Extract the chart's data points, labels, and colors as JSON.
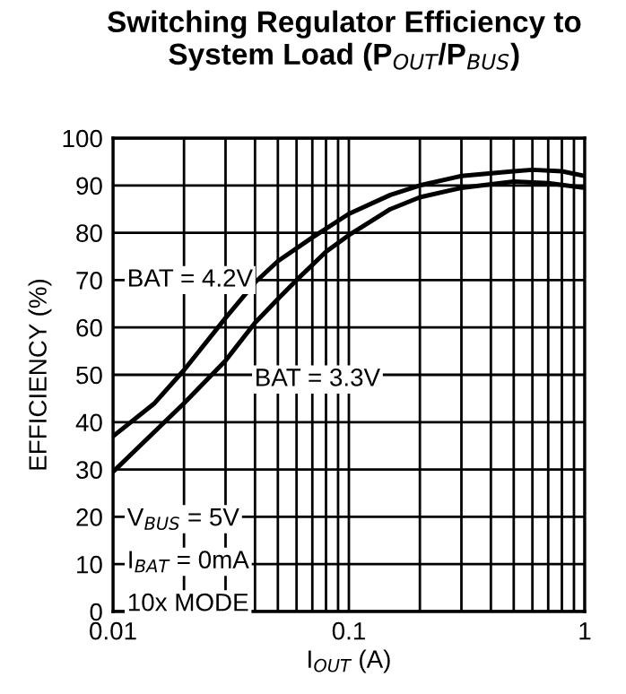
{
  "chart_data": {
    "type": "line",
    "title": "Switching Regulator Efficiency to\nSystem Load (P$_{OUT}$/P$_{BUS}$)",
    "xlabel": "I$_{OUT}$ (A)",
    "ylabel": "EFFICIENCY (%)",
    "log": "x",
    "grid": true,
    "legend": false,
    "marker": "none",
    "line_style": "solid",
    "series": [
      {
        "name": "BAT = 4.2V",
        "color": "#000000",
        "x": [
          0.01,
          0.015,
          0.02,
          0.03,
          0.04,
          0.05,
          0.07,
          0.1,
          0.15,
          0.2,
          0.3,
          0.5,
          0.6,
          0.8,
          1
        ],
        "values": [
          37,
          44,
          51,
          62,
          69.5,
          74,
          79,
          84,
          88,
          90,
          92,
          93,
          93.3,
          93,
          92
        ]
      },
      {
        "name": "BAT = 3.3V",
        "color": "#000000",
        "x": [
          0.01,
          0.02,
          0.03,
          0.04,
          0.05,
          0.06,
          0.08,
          0.1,
          0.15,
          0.2,
          0.3,
          0.5,
          0.7,
          1
        ],
        "values": [
          29.5,
          44,
          53,
          61,
          66,
          70,
          76,
          79.5,
          85,
          87.5,
          89.5,
          90.8,
          90.5,
          89.5
        ]
      }
    ],
    "annotations": [
      "V$_{BUS}$ = 5V",
      "I$_{BAT}$ = 0mA",
      "10x MODE"
    ],
    "xlim": [
      0.01,
      1
    ],
    "ylim": [
      0,
      100
    ],
    "xticks": [
      0.01,
      {
        "value": 0.02,
        "label": null
      },
      {
        "value": 0.03,
        "label": null
      },
      {
        "value": 0.04,
        "label": null
      },
      {
        "value": 0.05,
        "label": null
      },
      {
        "value": 0.06,
        "label": null
      },
      {
        "value": 0.07,
        "label": null
      },
      {
        "value": 0.08,
        "label": null
      },
      {
        "value": 0.09,
        "label": null
      },
      0.1,
      {
        "value": 0.2,
        "label": null
      },
      {
        "value": 0.3,
        "label": null
      },
      {
        "value": 0.4,
        "label": null
      },
      {
        "value": 0.5,
        "label": null
      },
      {
        "value": 0.6,
        "label": null
      },
      {
        "value": 0.7,
        "label": null
      },
      {
        "value": 0.8,
        "label": null
      },
      {
        "value": 0.9,
        "label": null
      },
      1
    ],
    "yticks": [
      0,
      10,
      20,
      30,
      40,
      50,
      60,
      70,
      80,
      90,
      100
    ]
  }
}
